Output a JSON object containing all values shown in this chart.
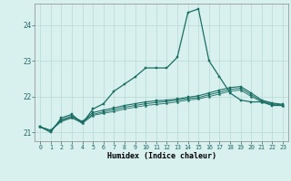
{
  "xlabel": "Humidex (Indice chaleur)",
  "bg_color": "#d8f0ee",
  "grid_color": "#b8d8d4",
  "line_color": "#1a6e64",
  "xlim": [
    -0.5,
    23.5
  ],
  "ylim": [
    20.75,
    24.6
  ],
  "yticks": [
    21,
    22,
    23,
    24
  ],
  "xticks": [
    0,
    1,
    2,
    3,
    4,
    5,
    6,
    7,
    8,
    9,
    10,
    11,
    12,
    13,
    14,
    15,
    16,
    17,
    18,
    19,
    20,
    21,
    22,
    23
  ],
  "series1_x": [
    0,
    1,
    2,
    3,
    4,
    5,
    6,
    7,
    8,
    9,
    10,
    11,
    12,
    13,
    14,
    15,
    16,
    17,
    18,
    19,
    20,
    21,
    22,
    23
  ],
  "series1_y": [
    21.15,
    21.0,
    21.4,
    21.5,
    21.25,
    21.65,
    21.8,
    22.15,
    22.35,
    22.55,
    22.8,
    22.8,
    22.8,
    23.1,
    24.35,
    24.45,
    23.0,
    22.55,
    22.1,
    21.9,
    21.85,
    21.85,
    21.75,
    21.75
  ],
  "series2_x": [
    0,
    1,
    2,
    3,
    4,
    5,
    6,
    7,
    8,
    9,
    10,
    11,
    12,
    13,
    14,
    15,
    16,
    17,
    18,
    19,
    20,
    21,
    22,
    23
  ],
  "series2_y": [
    21.15,
    21.05,
    21.35,
    21.45,
    21.3,
    21.55,
    21.62,
    21.68,
    21.75,
    21.8,
    21.85,
    21.88,
    21.9,
    21.93,
    21.98,
    22.02,
    22.1,
    22.18,
    22.25,
    22.28,
    22.1,
    21.9,
    21.82,
    21.78
  ],
  "series3_x": [
    0,
    1,
    2,
    3,
    4,
    5,
    6,
    7,
    8,
    9,
    10,
    11,
    12,
    13,
    14,
    15,
    16,
    17,
    18,
    19,
    20,
    21,
    22,
    23
  ],
  "series3_y": [
    21.15,
    21.05,
    21.32,
    21.42,
    21.28,
    21.5,
    21.57,
    21.63,
    21.7,
    21.75,
    21.8,
    21.83,
    21.86,
    21.9,
    21.94,
    21.97,
    22.05,
    22.12,
    22.2,
    22.23,
    22.05,
    21.87,
    21.8,
    21.76
  ],
  "series4_x": [
    0,
    1,
    2,
    3,
    4,
    5,
    6,
    7,
    8,
    9,
    10,
    11,
    12,
    13,
    14,
    15,
    16,
    17,
    18,
    19,
    20,
    21,
    22,
    23
  ],
  "series4_y": [
    21.15,
    21.05,
    21.3,
    21.4,
    21.25,
    21.47,
    21.53,
    21.58,
    21.65,
    21.7,
    21.75,
    21.78,
    21.81,
    21.85,
    21.9,
    21.93,
    22.0,
    22.07,
    22.15,
    22.18,
    22.0,
    21.85,
    21.78,
    21.74
  ]
}
